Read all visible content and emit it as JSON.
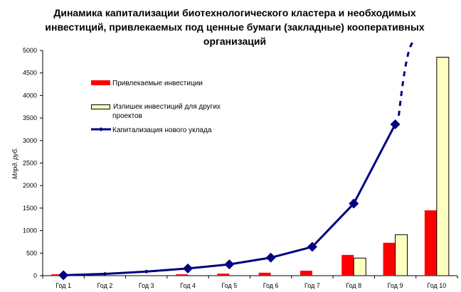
{
  "chart_data": {
    "type": "bar+line",
    "title": "Динамика капитализации биотехнологического кластера и необходимых инвестиций, привлекаемых под ценные бумаги (закладные) кооперативных организаций",
    "ylabel": "Млрд. руб.",
    "xlabel": "",
    "ylim": [
      0,
      5000
    ],
    "yticks": [
      0,
      500,
      1000,
      1500,
      2000,
      2500,
      3000,
      3500,
      4000,
      4500,
      5000
    ],
    "grid": false,
    "legend_position": "top-left",
    "categories": [
      "Год 1",
      "Год 2",
      "Год 3",
      "Год 4",
      "Год 5",
      "Год 6",
      "Год 7",
      "Год 8",
      "Год 9",
      "Год 10"
    ],
    "series": [
      {
        "name": "Привлекаемые инвестиции",
        "type": "bar",
        "color": "#ff0000",
        "values": [
          30,
          15,
          10,
          30,
          45,
          65,
          110,
          460,
          730,
          1450
        ]
      },
      {
        "name": "Излишек инвестиций для других проектов",
        "type": "bar",
        "color": "#ffffc0",
        "values": [
          0,
          0,
          0,
          0,
          0,
          0,
          0,
          390,
          910,
          4850
        ]
      },
      {
        "name": "Капитализация нового уклада",
        "type": "line",
        "color": "#000080",
        "values": [
          10,
          40,
          90,
          160,
          250,
          400,
          640,
          1600,
          3360,
          null
        ],
        "projection": "dotted upward trend after Год 9 beyond 5000"
      }
    ]
  }
}
